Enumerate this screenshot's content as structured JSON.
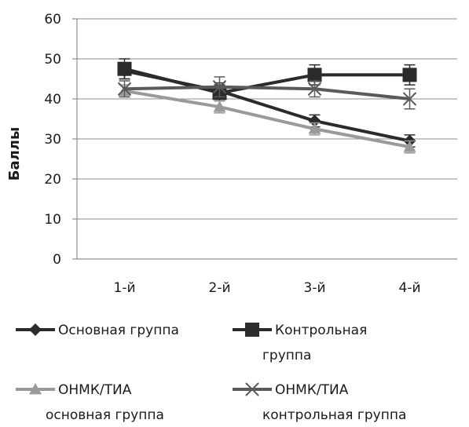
{
  "chart_data": {
    "type": "line",
    "categories": [
      "1-й",
      "2-й",
      "3-й",
      "4-й"
    ],
    "ylabel": "Баллы",
    "xlabel": "",
    "ylim": [
      0,
      60
    ],
    "yticks": [
      0,
      10,
      20,
      30,
      40,
      50,
      60
    ],
    "grid": "horizontal",
    "legend_position": "bottom",
    "series": [
      {
        "name": "Основная группа",
        "legend_lines": [
          "Основная группа"
        ],
        "values": [
          47,
          42,
          34.5,
          29.5
        ],
        "color": "#2b2b2b",
        "marker": "diamond",
        "errors": [
          2,
          2,
          1.5,
          1.5
        ]
      },
      {
        "name": "Контрольная группа",
        "legend_lines": [
          "Контрольная",
          "группа"
        ],
        "values": [
          47.5,
          41.5,
          46,
          46
        ],
        "color": "#2b2b2b",
        "marker": "square",
        "errors": [
          2.5,
          2,
          2.5,
          2.5
        ]
      },
      {
        "name": "ОНМК/ТИА основная группа",
        "legend_lines": [
          "ОНМК/ТИА",
          "основная группа"
        ],
        "values": [
          42,
          38,
          32.5,
          28
        ],
        "color": "#9a9a9a",
        "marker": "triangle",
        "errors": [
          1.5,
          1.5,
          1.5,
          1.5
        ]
      },
      {
        "name": "ОНМК/ТИА контрольная группа",
        "legend_lines": [
          "ОНМК/ТИА",
          "контрольная группа"
        ],
        "values": [
          42.5,
          43,
          42.5,
          40
        ],
        "color": "#5a5a5a",
        "marker": "x",
        "errors": [
          2,
          2.5,
          2,
          2.5
        ]
      }
    ]
  }
}
